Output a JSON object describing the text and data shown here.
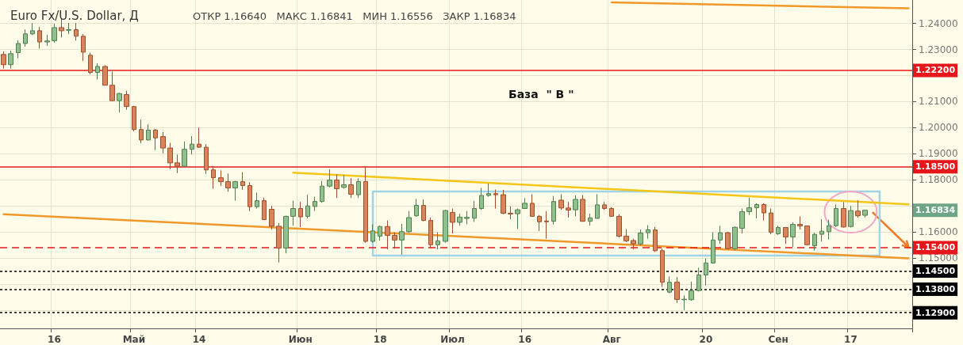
{
  "chart_data": {
    "type": "candlestick",
    "title": "Euro Fx/U.S. Dollar, Д",
    "subtitle": "ОТКР 1.16640   МАКС 1.16841   МИН 1.16556   ЗАКР 1.16834",
    "categories": [
      null,
      null,
      null,
      null,
      null,
      null,
      null,
      "16",
      null,
      null,
      null,
      null,
      null,
      null,
      null,
      null,
      null,
      null,
      "Май",
      null,
      null,
      null,
      null,
      null,
      null,
      null,
      null,
      "14",
      null,
      null,
      null,
      null,
      null,
      null,
      null,
      null,
      null,
      null,
      null,
      null,
      null,
      "Июн",
      null,
      null,
      null,
      null,
      null,
      null,
      null,
      null,
      null,
      null,
      "18",
      null,
      null,
      null,
      null,
      null,
      null,
      null,
      null,
      null,
      "Июл",
      null,
      null,
      null,
      null,
      null,
      null,
      null,
      null,
      null,
      "16",
      null,
      null,
      null,
      null,
      null,
      null,
      null,
      null,
      null,
      null,
      null,
      "Авг",
      null,
      null,
      null,
      null,
      null,
      null,
      null,
      null,
      null,
      null,
      null,
      null,
      "20",
      null,
      null,
      null,
      null,
      null,
      null,
      null,
      null,
      null,
      "Сен",
      null,
      null,
      null,
      null,
      null,
      null,
      null,
      null,
      null,
      "17",
      null,
      null,
      null,
      null,
      null,
      null,
      null,
      null
    ],
    "ohlc": [
      [
        1.2281,
        1.2293,
        1.2227,
        1.2242
      ],
      [
        1.2242,
        1.2296,
        1.2227,
        1.2284
      ],
      [
        1.2288,
        1.2336,
        1.2266,
        1.2323
      ],
      [
        1.2323,
        1.2377,
        1.2311,
        1.236
      ],
      [
        1.236,
        1.2402,
        1.2355,
        1.2372
      ],
      [
        1.2372,
        1.2387,
        1.2304,
        1.2329
      ],
      [
        1.2329,
        1.2357,
        1.2314,
        1.2333
      ],
      [
        1.2334,
        1.2399,
        1.2326,
        1.2384
      ],
      [
        1.2384,
        1.2417,
        1.2346,
        1.2372
      ],
      [
        1.2374,
        1.2402,
        1.2359,
        1.2376
      ],
      [
        1.2376,
        1.2402,
        1.2334,
        1.2351
      ],
      [
        1.2351,
        1.2359,
        1.2256,
        1.229
      ],
      [
        1.2278,
        1.2288,
        1.2205,
        1.2212
      ],
      [
        1.2212,
        1.2247,
        1.2185,
        1.2235
      ],
      [
        1.2235,
        1.224,
        1.2163,
        1.2163
      ],
      [
        1.2163,
        1.2215,
        1.2102,
        1.2104
      ],
      [
        1.2104,
        1.2134,
        1.2059,
        1.2131
      ],
      [
        1.2127,
        1.2142,
        1.2069,
        1.2081
      ],
      [
        1.2081,
        1.2084,
        1.1986,
        1.1993
      ],
      [
        1.1993,
        1.2031,
        1.194,
        1.1953
      ],
      [
        1.1953,
        1.2013,
        1.1951,
        1.1991
      ],
      [
        1.1991,
        1.1995,
        1.1914,
        1.1961
      ],
      [
        1.1966,
        1.1983,
        1.1902,
        1.1922
      ],
      [
        1.1922,
        1.1942,
        1.1841,
        1.1865
      ],
      [
        1.1865,
        1.1897,
        1.1826,
        1.1852
      ],
      [
        1.1852,
        1.1947,
        1.185,
        1.1917
      ],
      [
        1.1917,
        1.1968,
        1.1897,
        1.1937
      ],
      [
        1.1937,
        1.2,
        1.1922,
        1.1925
      ],
      [
        1.1925,
        1.1937,
        1.1823,
        1.1838
      ],
      [
        1.1838,
        1.1852,
        1.1766,
        1.1808
      ],
      [
        1.1808,
        1.1836,
        1.1776,
        1.1793
      ],
      [
        1.1793,
        1.1824,
        1.1754,
        1.1769
      ],
      [
        1.1769,
        1.1796,
        1.172,
        1.1793
      ],
      [
        1.1793,
        1.1829,
        1.1761,
        1.1778
      ],
      [
        1.1778,
        1.1791,
        1.168,
        1.1697
      ],
      [
        1.1697,
        1.1751,
        1.169,
        1.172
      ],
      [
        1.172,
        1.1732,
        1.1647,
        1.1647
      ],
      [
        1.1687,
        1.17,
        1.1609,
        1.1622
      ],
      [
        1.1622,
        1.1634,
        1.1483,
        1.1538
      ],
      [
        1.1538,
        1.1662,
        1.1518,
        1.166
      ],
      [
        1.166,
        1.172,
        1.1624,
        1.169
      ],
      [
        1.169,
        1.1715,
        1.1619,
        1.1658
      ],
      [
        1.166,
        1.1743,
        1.1652,
        1.17
      ],
      [
        1.1698,
        1.1735,
        1.168,
        1.1717
      ],
      [
        1.1717,
        1.1796,
        1.1712,
        1.1776
      ],
      [
        1.1776,
        1.1841,
        1.1771,
        1.1799
      ],
      [
        1.1799,
        1.1821,
        1.173,
        1.1766
      ],
      [
        1.1771,
        1.1819,
        1.1766,
        1.1781
      ],
      [
        1.1781,
        1.1806,
        1.173,
        1.1745
      ],
      [
        1.1743,
        1.1806,
        1.173,
        1.1793
      ],
      [
        1.1793,
        1.1852,
        1.1559,
        1.1564
      ],
      [
        1.1564,
        1.1629,
        1.1559,
        1.1604
      ],
      [
        1.1584,
        1.1624,
        1.1567,
        1.1621
      ],
      [
        1.1621,
        1.1644,
        1.1533,
        1.1587
      ],
      [
        1.1587,
        1.1599,
        1.1536,
        1.1569
      ],
      [
        1.1569,
        1.1631,
        1.1513,
        1.1601
      ],
      [
        1.1601,
        1.168,
        1.1597,
        1.1655
      ],
      [
        1.1662,
        1.1727,
        1.1658,
        1.1702
      ],
      [
        1.1702,
        1.1725,
        1.1641,
        1.1644
      ],
      [
        1.1644,
        1.1655,
        1.1538,
        1.1551
      ],
      [
        1.1551,
        1.1599,
        1.1533,
        1.1566
      ],
      [
        1.1564,
        1.1685,
        1.1559,
        1.1682
      ],
      [
        1.1675,
        1.169,
        1.1594,
        1.1637
      ],
      [
        1.1637,
        1.167,
        1.1624,
        1.1657
      ],
      [
        1.1652,
        1.168,
        1.1629,
        1.1656
      ],
      [
        1.1653,
        1.172,
        1.1639,
        1.169
      ],
      [
        1.169,
        1.1769,
        1.1685,
        1.174
      ],
      [
        1.174,
        1.1786,
        1.1735,
        1.1747
      ],
      [
        1.1747,
        1.1763,
        1.169,
        1.1743
      ],
      [
        1.1743,
        1.1761,
        1.1668,
        1.1672
      ],
      [
        1.1672,
        1.1698,
        1.1649,
        1.1669
      ],
      [
        1.167,
        1.169,
        1.1611,
        1.1685
      ],
      [
        1.169,
        1.173,
        1.1688,
        1.171
      ],
      [
        1.171,
        1.1745,
        1.1658,
        1.166
      ],
      [
        1.166,
        1.1665,
        1.1604,
        1.1639
      ],
      [
        1.1642,
        1.168,
        1.1574,
        1.1639
      ],
      [
        1.1641,
        1.1738,
        1.1629,
        1.1717
      ],
      [
        1.1722,
        1.1745,
        1.1685,
        1.1692
      ],
      [
        1.1692,
        1.1715,
        1.1655,
        1.1684
      ],
      [
        1.1685,
        1.174,
        1.166,
        1.1725
      ],
      [
        1.1725,
        1.1742,
        1.1639,
        1.1641
      ],
      [
        1.1641,
        1.167,
        1.1624,
        1.1654
      ],
      [
        1.1652,
        1.1745,
        1.1652,
        1.1704
      ],
      [
        1.1704,
        1.1715,
        1.1685,
        1.169
      ],
      [
        1.169,
        1.1695,
        1.1658,
        1.166
      ],
      [
        1.166,
        1.1668,
        1.1579,
        1.1584
      ],
      [
        1.1584,
        1.1611,
        1.1561,
        1.1566
      ],
      [
        1.1567,
        1.1574,
        1.1533,
        1.1554
      ],
      [
        1.1554,
        1.1609,
        1.1548,
        1.1596
      ],
      [
        1.1597,
        1.1626,
        1.1574,
        1.1608
      ],
      [
        1.1608,
        1.1619,
        1.1523,
        1.1528
      ],
      [
        1.1528,
        1.1536,
        1.1389,
        1.1407
      ],
      [
        1.1369,
        1.1429,
        1.1365,
        1.1407
      ],
      [
        1.1407,
        1.1427,
        1.1328,
        1.1341
      ],
      [
        1.134,
        1.1357,
        1.1301,
        1.1342
      ],
      [
        1.134,
        1.1409,
        1.1336,
        1.1375
      ],
      [
        1.1375,
        1.1463,
        1.1372,
        1.1435
      ],
      [
        1.1435,
        1.1498,
        1.1395,
        1.1481
      ],
      [
        1.1481,
        1.1599,
        1.1478,
        1.1569
      ],
      [
        1.1569,
        1.1624,
        1.1554,
        1.1597
      ],
      [
        1.1597,
        1.1601,
        1.1533,
        1.1536
      ],
      [
        1.1536,
        1.1621,
        1.1531,
        1.1618
      ],
      [
        1.1614,
        1.169,
        1.1594,
        1.1678
      ],
      [
        1.1678,
        1.1732,
        1.1665,
        1.1693
      ],
      [
        1.1693,
        1.171,
        1.1652,
        1.1705
      ],
      [
        1.1705,
        1.171,
        1.1644,
        1.1673
      ],
      [
        1.1673,
        1.169,
        1.1591,
        1.1599
      ],
      [
        1.1593,
        1.1624,
        1.1589,
        1.1617
      ],
      [
        1.1617,
        1.1619,
        1.1554,
        1.1581
      ],
      [
        1.1581,
        1.1637,
        1.1543,
        1.1629
      ],
      [
        1.1629,
        1.166,
        1.1609,
        1.1623
      ],
      [
        1.1623,
        1.1624,
        1.1548,
        1.1551
      ],
      [
        1.1547,
        1.1597,
        1.1528,
        1.1591
      ],
      [
        1.1591,
        1.1649,
        1.1564,
        1.1603
      ],
      [
        1.1601,
        1.1647,
        1.1571,
        1.1624
      ],
      [
        1.1624,
        1.1705,
        1.1619,
        1.169
      ],
      [
        1.169,
        1.1715,
        1.1617,
        1.1619
      ],
      [
        1.1621,
        1.17,
        1.1617,
        1.1682
      ],
      [
        1.168,
        1.1722,
        1.1655,
        1.1662
      ],
      [
        1.1664,
        1.16841,
        1.16556,
        1.16834
      ],
      null,
      null,
      null,
      null,
      null,
      null
    ],
    "series": [
      {
        "type": "line",
        "color": "#f5c518",
        "values": [
          null,
          null,
          null,
          null,
          null,
          null,
          null,
          null,
          null,
          null,
          null,
          null,
          null,
          null,
          null,
          null,
          null,
          null,
          null,
          null,
          null,
          null,
          null,
          null,
          null,
          null,
          null,
          null,
          null,
          null,
          null,
          null,
          null,
          null,
          null,
          null,
          null,
          null,
          null,
          null,
          1.1827,
          null,
          null,
          null,
          null,
          null,
          null,
          null,
          null,
          null,
          null,
          null,
          null,
          null,
          null,
          null,
          null,
          null,
          null,
          null,
          null,
          null,
          null,
          null,
          null,
          null,
          null,
          null,
          null,
          null,
          null,
          null,
          null,
          null,
          null,
          null,
          null,
          null,
          null,
          null,
          null,
          null,
          null,
          null,
          null,
          null,
          null,
          null,
          null,
          null,
          null,
          null,
          null,
          null,
          null,
          null,
          null,
          null,
          null,
          null,
          null,
          null,
          null,
          null,
          null,
          null,
          null,
          null,
          null,
          null,
          null,
          null,
          null,
          null,
          null,
          null,
          null,
          null,
          null,
          null,
          null,
          null,
          null,
          null,
          null,
          1.1706
        ]
      },
      {
        "type": "line",
        "color": "#f0982a",
        "values": [
          1.1668,
          null,
          null,
          null,
          null,
          null,
          null,
          null,
          null,
          null,
          null,
          null,
          null,
          null,
          null,
          null,
          null,
          null,
          null,
          null,
          null,
          null,
          null,
          null,
          null,
          null,
          null,
          null,
          null,
          null,
          null,
          null,
          null,
          null,
          null,
          null,
          null,
          null,
          null,
          null,
          null,
          null,
          null,
          null,
          null,
          null,
          null,
          null,
          null,
          null,
          null,
          null,
          null,
          null,
          null,
          null,
          null,
          null,
          null,
          null,
          null,
          null,
          null,
          null,
          null,
          null,
          null,
          null,
          null,
          null,
          null,
          null,
          null,
          null,
          null,
          null,
          null,
          null,
          null,
          null,
          null,
          null,
          null,
          null,
          null,
          null,
          null,
          null,
          null,
          null,
          null,
          null,
          null,
          null,
          null,
          null,
          null,
          null,
          null,
          null,
          null,
          null,
          null,
          null,
          null,
          null,
          null,
          null,
          null,
          null,
          null,
          null,
          null,
          null,
          null,
          null,
          null,
          null,
          null,
          null,
          null,
          null,
          null,
          null,
          null,
          1.1499
        ]
      },
      {
        "type": "line",
        "color": "#f0982a",
        "values": [
          null,
          null,
          null,
          null,
          null,
          null,
          null,
          null,
          null,
          null,
          null,
          null,
          null,
          null,
          null,
          null,
          null,
          null,
          null,
          null,
          null,
          null,
          null,
          null,
          null,
          null,
          null,
          null,
          null,
          null,
          null,
          null,
          null,
          null,
          null,
          null,
          null,
          null,
          null,
          null,
          null,
          null,
          null,
          null,
          null,
          null,
          null,
          null,
          null,
          null,
          null,
          null,
          null,
          null,
          null,
          null,
          null,
          null,
          null,
          null,
          null,
          null,
          null,
          null,
          null,
          null,
          null,
          null,
          null,
          null,
          null,
          null,
          null,
          null,
          null,
          null,
          null,
          null,
          null,
          null,
          null,
          null,
          null,
          null,
          1.2481,
          null,
          null,
          null,
          null,
          null,
          null,
          null,
          null,
          null,
          null,
          null,
          null,
          null,
          null,
          null,
          null,
          null,
          null,
          null,
          null,
          null,
          null,
          null,
          null,
          null,
          null,
          null,
          null,
          null,
          null,
          null,
          null,
          null,
          null,
          null,
          null,
          null,
          null,
          null,
          null,
          1.2458
        ]
      }
    ],
    "ylim": [
      1.123,
      1.249
    ],
    "yticks": [
      {
        "value": 1.13,
        "label": null
      },
      {
        "value": 1.14,
        "label": null
      },
      {
        "value": 1.15,
        "label": "1.15000"
      },
      {
        "value": 1.16,
        "label": "1.16000"
      },
      {
        "value": 1.17,
        "label": null
      },
      {
        "value": 1.18,
        "label": "1.18000"
      },
      {
        "value": 1.19,
        "label": "1.19000"
      },
      {
        "value": 1.2,
        "label": "1.20000"
      },
      {
        "value": 1.21,
        "label": "1.21000"
      },
      {
        "value": 1.22,
        "label": null
      },
      {
        "value": 1.23,
        "label": "1.23000"
      },
      {
        "value": 1.24,
        "label": "1.24000"
      }
    ],
    "ref_lines": [
      {
        "axis": "y",
        "value": 1.222,
        "label": "1.22200",
        "color": "#e8161b",
        "line_style": "solid"
      },
      {
        "axis": "y",
        "value": 1.185,
        "label": "1.18500",
        "color": "#e8161b",
        "line_style": "solid"
      },
      {
        "axis": "y",
        "value": 1.154,
        "label": "1.15400",
        "color": "#e8161b",
        "line_style": "dashed"
      },
      {
        "axis": "y",
        "value": 1.145,
        "label": "1.14500",
        "color": "#000000",
        "line_style": "dotted"
      },
      {
        "axis": "y",
        "value": 1.138,
        "label": "1.13800",
        "color": "#000000",
        "line_style": "dotted"
      },
      {
        "axis": "y",
        "value": 1.129,
        "label": "1.12900",
        "color": "#000000",
        "line_style": "dotted"
      }
    ],
    "annotations": [
      "База  \" В \"",
      "1.16834"
    ],
    "grid": true
  }
}
